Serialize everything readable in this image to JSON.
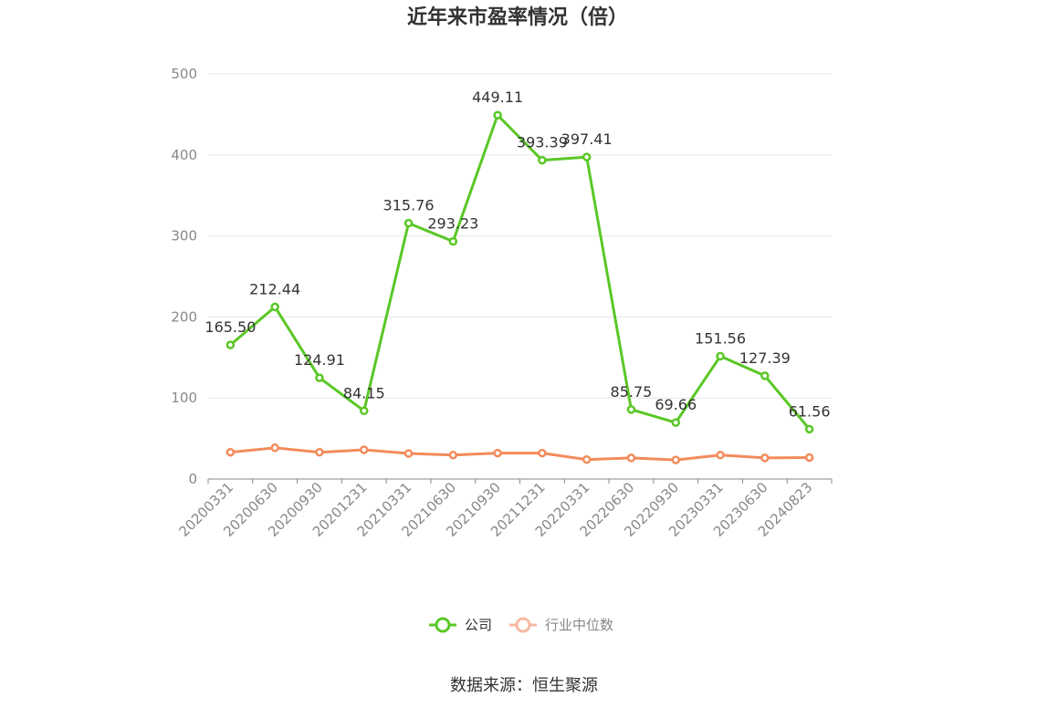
{
  "title": "近年来市盈率情况（倍）",
  "source": "数据来源：恒生聚源",
  "chart_data": {
    "type": "line",
    "categories": [
      "20200331",
      "20200630",
      "20200930",
      "20201231",
      "20210331",
      "20210630",
      "20210930",
      "20211231",
      "20220331",
      "20220630",
      "20220930",
      "20230331",
      "20230630",
      "20240823"
    ],
    "ylim": [
      0,
      500
    ],
    "yticks": [
      0,
      100,
      200,
      300,
      400,
      500
    ],
    "grid": true,
    "legend_position": "bottom",
    "series": [
      {
        "name": "公司",
        "color": "#5ac726",
        "values": [
          165.5,
          212.44,
          124.91,
          84.15,
          315.76,
          293.23,
          449.11,
          393.39,
          397.41,
          85.75,
          69.66,
          151.56,
          127.39,
          61.56
        ],
        "labels": [
          "165.50",
          "212.44",
          "124.91",
          "84.15",
          "315.76",
          "293.23",
          "449.11",
          "393.39",
          "397.41",
          "85.75",
          "69.66",
          "151.56",
          "127.39",
          "61.56"
        ]
      },
      {
        "name": "行业中位数",
        "color": "#f28b5b",
        "legend_color": "#f7b9a1",
        "values": [
          33.0,
          38.5,
          33.0,
          36.0,
          31.5,
          29.5,
          32.0,
          32.0,
          24.0,
          26.0,
          23.5,
          29.5,
          26.0,
          26.5
        ]
      }
    ]
  }
}
